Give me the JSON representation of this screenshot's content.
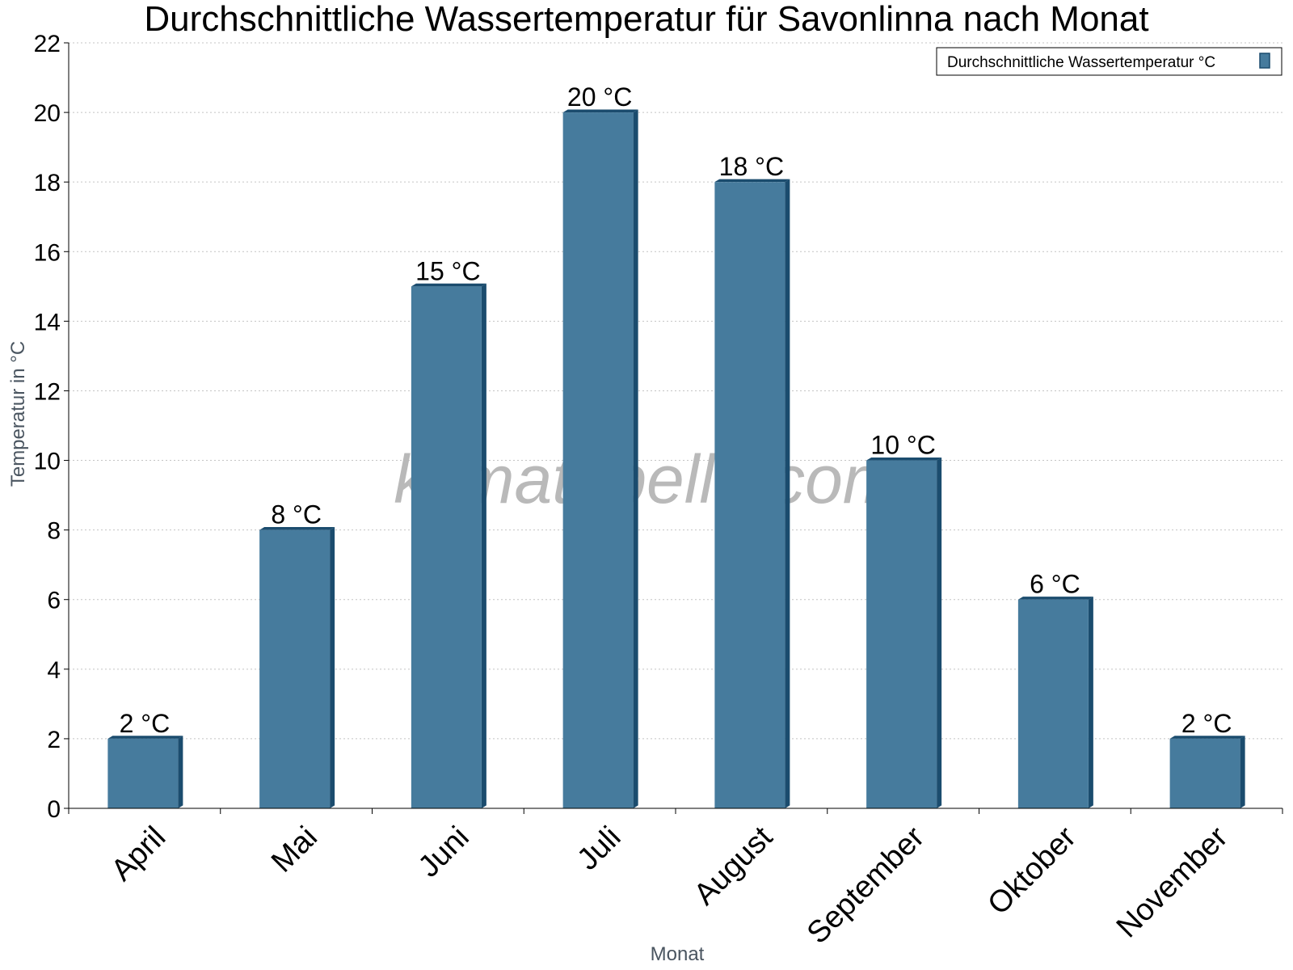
{
  "chart_data": {
    "type": "bar",
    "title": "Durchschnittliche Wassertemperatur für Savonlinna nach Monat",
    "xlabel": "Monat",
    "ylabel": "Temperatur in °C",
    "categories": [
      "April",
      "Mai",
      "Juni",
      "Juli",
      "August",
      "September",
      "Oktober",
      "November"
    ],
    "series": [
      {
        "name": "Durchschnittliche Wassertemperatur °C",
        "values": [
          2,
          8,
          15,
          20,
          18,
          10,
          6,
          2
        ],
        "labels": [
          "2 °C",
          "8 °C",
          "15 °C",
          "20 °C",
          "18 °C",
          "10 °C",
          "6 °C",
          "2 °C"
        ],
        "color": "#467b9d",
        "edge_color": "#1b4c6e"
      }
    ],
    "ylim": [
      0,
      22
    ],
    "yticks": [
      0,
      2,
      4,
      6,
      8,
      10,
      12,
      14,
      16,
      18,
      20,
      22
    ],
    "grid": true,
    "legend": "top-right",
    "watermark": "klimatabelle.com"
  }
}
